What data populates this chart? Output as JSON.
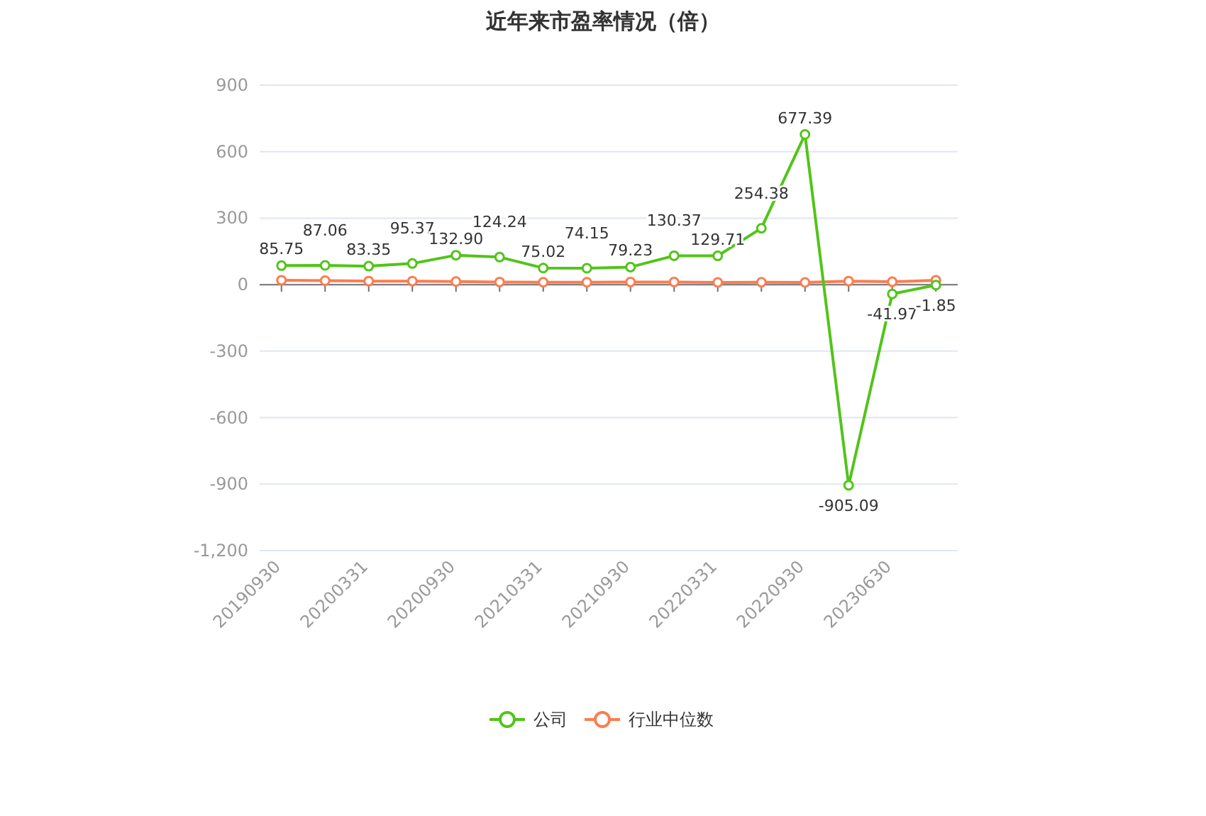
{
  "chart_data": {
    "type": "line",
    "title": "近年来市盈率情况（倍）",
    "categories": [
      "20190930",
      null,
      "20200331",
      null,
      "20200930",
      null,
      "20210331",
      null,
      "20210930",
      null,
      "20220331",
      null,
      "20220930",
      null,
      "20230630",
      null
    ],
    "series": [
      {
        "name": "公司",
        "color": "#52c41a",
        "values": [
          85.75,
          87.06,
          83.35,
          95.37,
          132.9,
          124.24,
          75.02,
          74.15,
          79.23,
          130.37,
          129.71,
          254.38,
          677.39,
          -905.09,
          -41.97,
          -1.85
        ],
        "value_labels": [
          "85.75",
          "87.06",
          "83.35",
          "95.37",
          "132.90",
          "124.24",
          "75.02",
          "74.15",
          "79.23",
          "130.37",
          "129.71",
          "254.38",
          "677.39",
          "-905.09",
          "-41.97",
          "-1.85"
        ]
      },
      {
        "name": "行业中位数",
        "color": "#fa7d4f",
        "values": [
          20,
          18,
          16,
          16,
          14,
          12,
          11,
          11,
          12,
          12,
          10,
          11,
          10,
          16,
          13,
          20
        ]
      }
    ],
    "ylim": [
      -1200,
      900
    ],
    "yticks": [
      {
        "value": -1200,
        "label": "-1,200"
      },
      -900,
      -600,
      -300,
      0,
      300,
      600,
      900
    ],
    "grid": "y",
    "legend": "bottom",
    "marker": "circle"
  }
}
